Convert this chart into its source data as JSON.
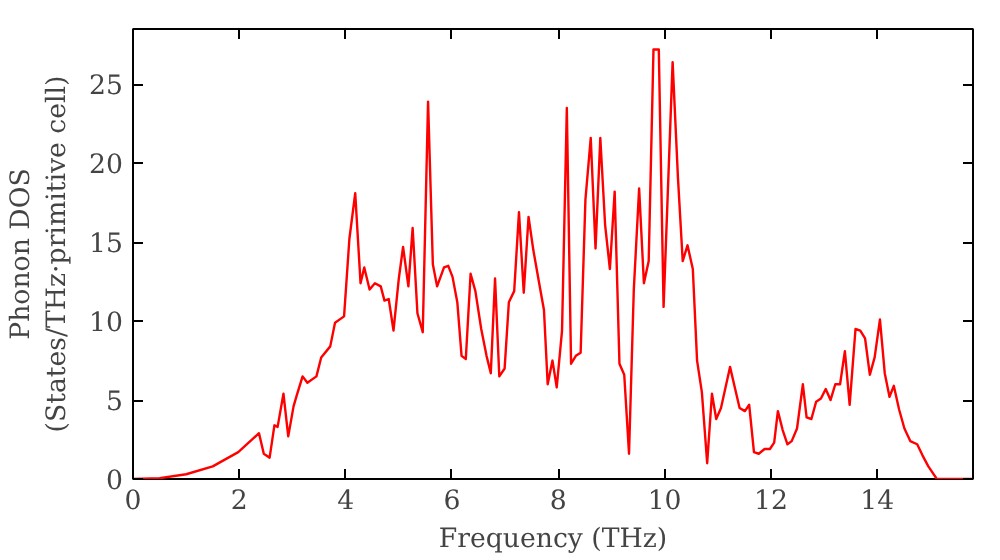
{
  "chart_data": {
    "type": "line",
    "xlabel": "Frequency (THz)",
    "ylabel": "Phonon DOS\n(States/THz·primitive cell)",
    "xlim": [
      0,
      15.8
    ],
    "ylim": [
      0,
      28.5
    ],
    "xticks": [
      0,
      2,
      4,
      6,
      8,
      10,
      12,
      14
    ],
    "yticks": [
      0,
      5,
      10,
      15,
      20,
      25
    ],
    "grid": false,
    "marker": "none",
    "line_style": "solid",
    "series": [
      {
        "color": "#ff0000",
        "x": [
          0,
          0.5,
          1,
          1.5,
          1.98,
          2.37,
          2.46,
          2.57,
          2.66,
          2.72,
          2.83,
          2.92,
          3.02,
          3.08,
          3.19,
          3.28,
          3.45,
          3.54,
          3.71,
          3.8,
          3.97,
          4.07,
          4.18,
          4.28,
          4.35,
          4.45,
          4.55,
          4.66,
          4.73,
          4.81,
          4.9,
          5.0,
          5.08,
          5.18,
          5.26,
          5.35,
          5.45,
          5.55,
          5.64,
          5.72,
          5.85,
          5.93,
          6.01,
          6.1,
          6.18,
          6.26,
          6.35,
          6.44,
          6.55,
          6.65,
          6.73,
          6.81,
          6.89,
          6.99,
          7.07,
          7.17,
          7.26,
          7.35,
          7.44,
          7.53,
          7.64,
          7.73,
          7.8,
          7.89,
          7.97,
          8.07,
          8.16,
          8.24,
          8.33,
          8.42,
          8.51,
          8.61,
          8.7,
          8.79,
          8.88,
          8.97,
          9.06,
          9.15,
          9.24,
          9.33,
          9.42,
          9.52,
          9.61,
          9.7,
          9.79,
          9.89,
          9.98,
          10.15,
          10.25,
          10.34,
          10.43,
          10.53,
          10.61,
          10.7,
          10.8,
          10.89,
          10.97,
          11.06,
          11.23,
          11.32,
          11.41,
          11.51,
          11.59,
          11.68,
          11.77,
          11.88,
          11.98,
          12.06,
          12.13,
          12.22,
          12.31,
          12.39,
          12.49,
          12.6,
          12.67,
          12.76,
          12.85,
          12.94,
          13.03,
          13.12,
          13.21,
          13.3,
          13.39,
          13.48,
          13.59,
          13.68,
          13.77,
          13.86,
          13.95,
          14.05,
          14.14,
          14.23,
          14.31,
          14.41,
          14.51,
          14.62,
          14.75,
          14.85,
          14.96,
          15.12,
          15.79
        ],
        "values": [
          0,
          0.05,
          0.3,
          0.8,
          1.7,
          2.9,
          1.6,
          1.35,
          3.4,
          3.3,
          5.4,
          2.7,
          4.6,
          5.3,
          6.5,
          6.1,
          6.5,
          7.7,
          8.4,
          9.9,
          10.3,
          15.2,
          18.1,
          12.4,
          13.4,
          12.0,
          12.4,
          12.2,
          11.3,
          11.4,
          9.4,
          12.7,
          14.7,
          12.2,
          15.9,
          10.5,
          9.3,
          23.9,
          13.6,
          12.2,
          13.4,
          13.5,
          12.8,
          11.2,
          7.8,
          7.6,
          13.0,
          11.9,
          9.5,
          7.8,
          6.7,
          12.7,
          6.5,
          7.0,
          11.2,
          11.9,
          16.9,
          11.8,
          16.6,
          14.5,
          12.4,
          10.7,
          6.0,
          7.5,
          5.8,
          9.4,
          23.5,
          7.3,
          7.8,
          8.0,
          17.7,
          21.6,
          14.6,
          21.6,
          16.1,
          13.3,
          18.2,
          7.3,
          6.6,
          1.6,
          12.0,
          18.4,
          12.4,
          13.8,
          27.2,
          27.2,
          10.9,
          26.4,
          19.1,
          13.8,
          14.8,
          13.3,
          7.5,
          5.5,
          1.0,
          5.4,
          3.8,
          4.5,
          7.1,
          5.8,
          4.5,
          4.3,
          4.7,
          1.7,
          1.6,
          1.9,
          1.9,
          2.3,
          4.3,
          3.1,
          2.2,
          2.4,
          3.2,
          6.0,
          3.9,
          3.8,
          4.9,
          5.1,
          5.7,
          5.0,
          6.0,
          6.0,
          8.1,
          4.7,
          9.5,
          9.4,
          8.9,
          6.6,
          7.7,
          10.1,
          6.7,
          5.2,
          5.9,
          4.4,
          3.2,
          2.4,
          2.2,
          1.5,
          0.8,
          0,
          0
        ]
      }
    ]
  }
}
